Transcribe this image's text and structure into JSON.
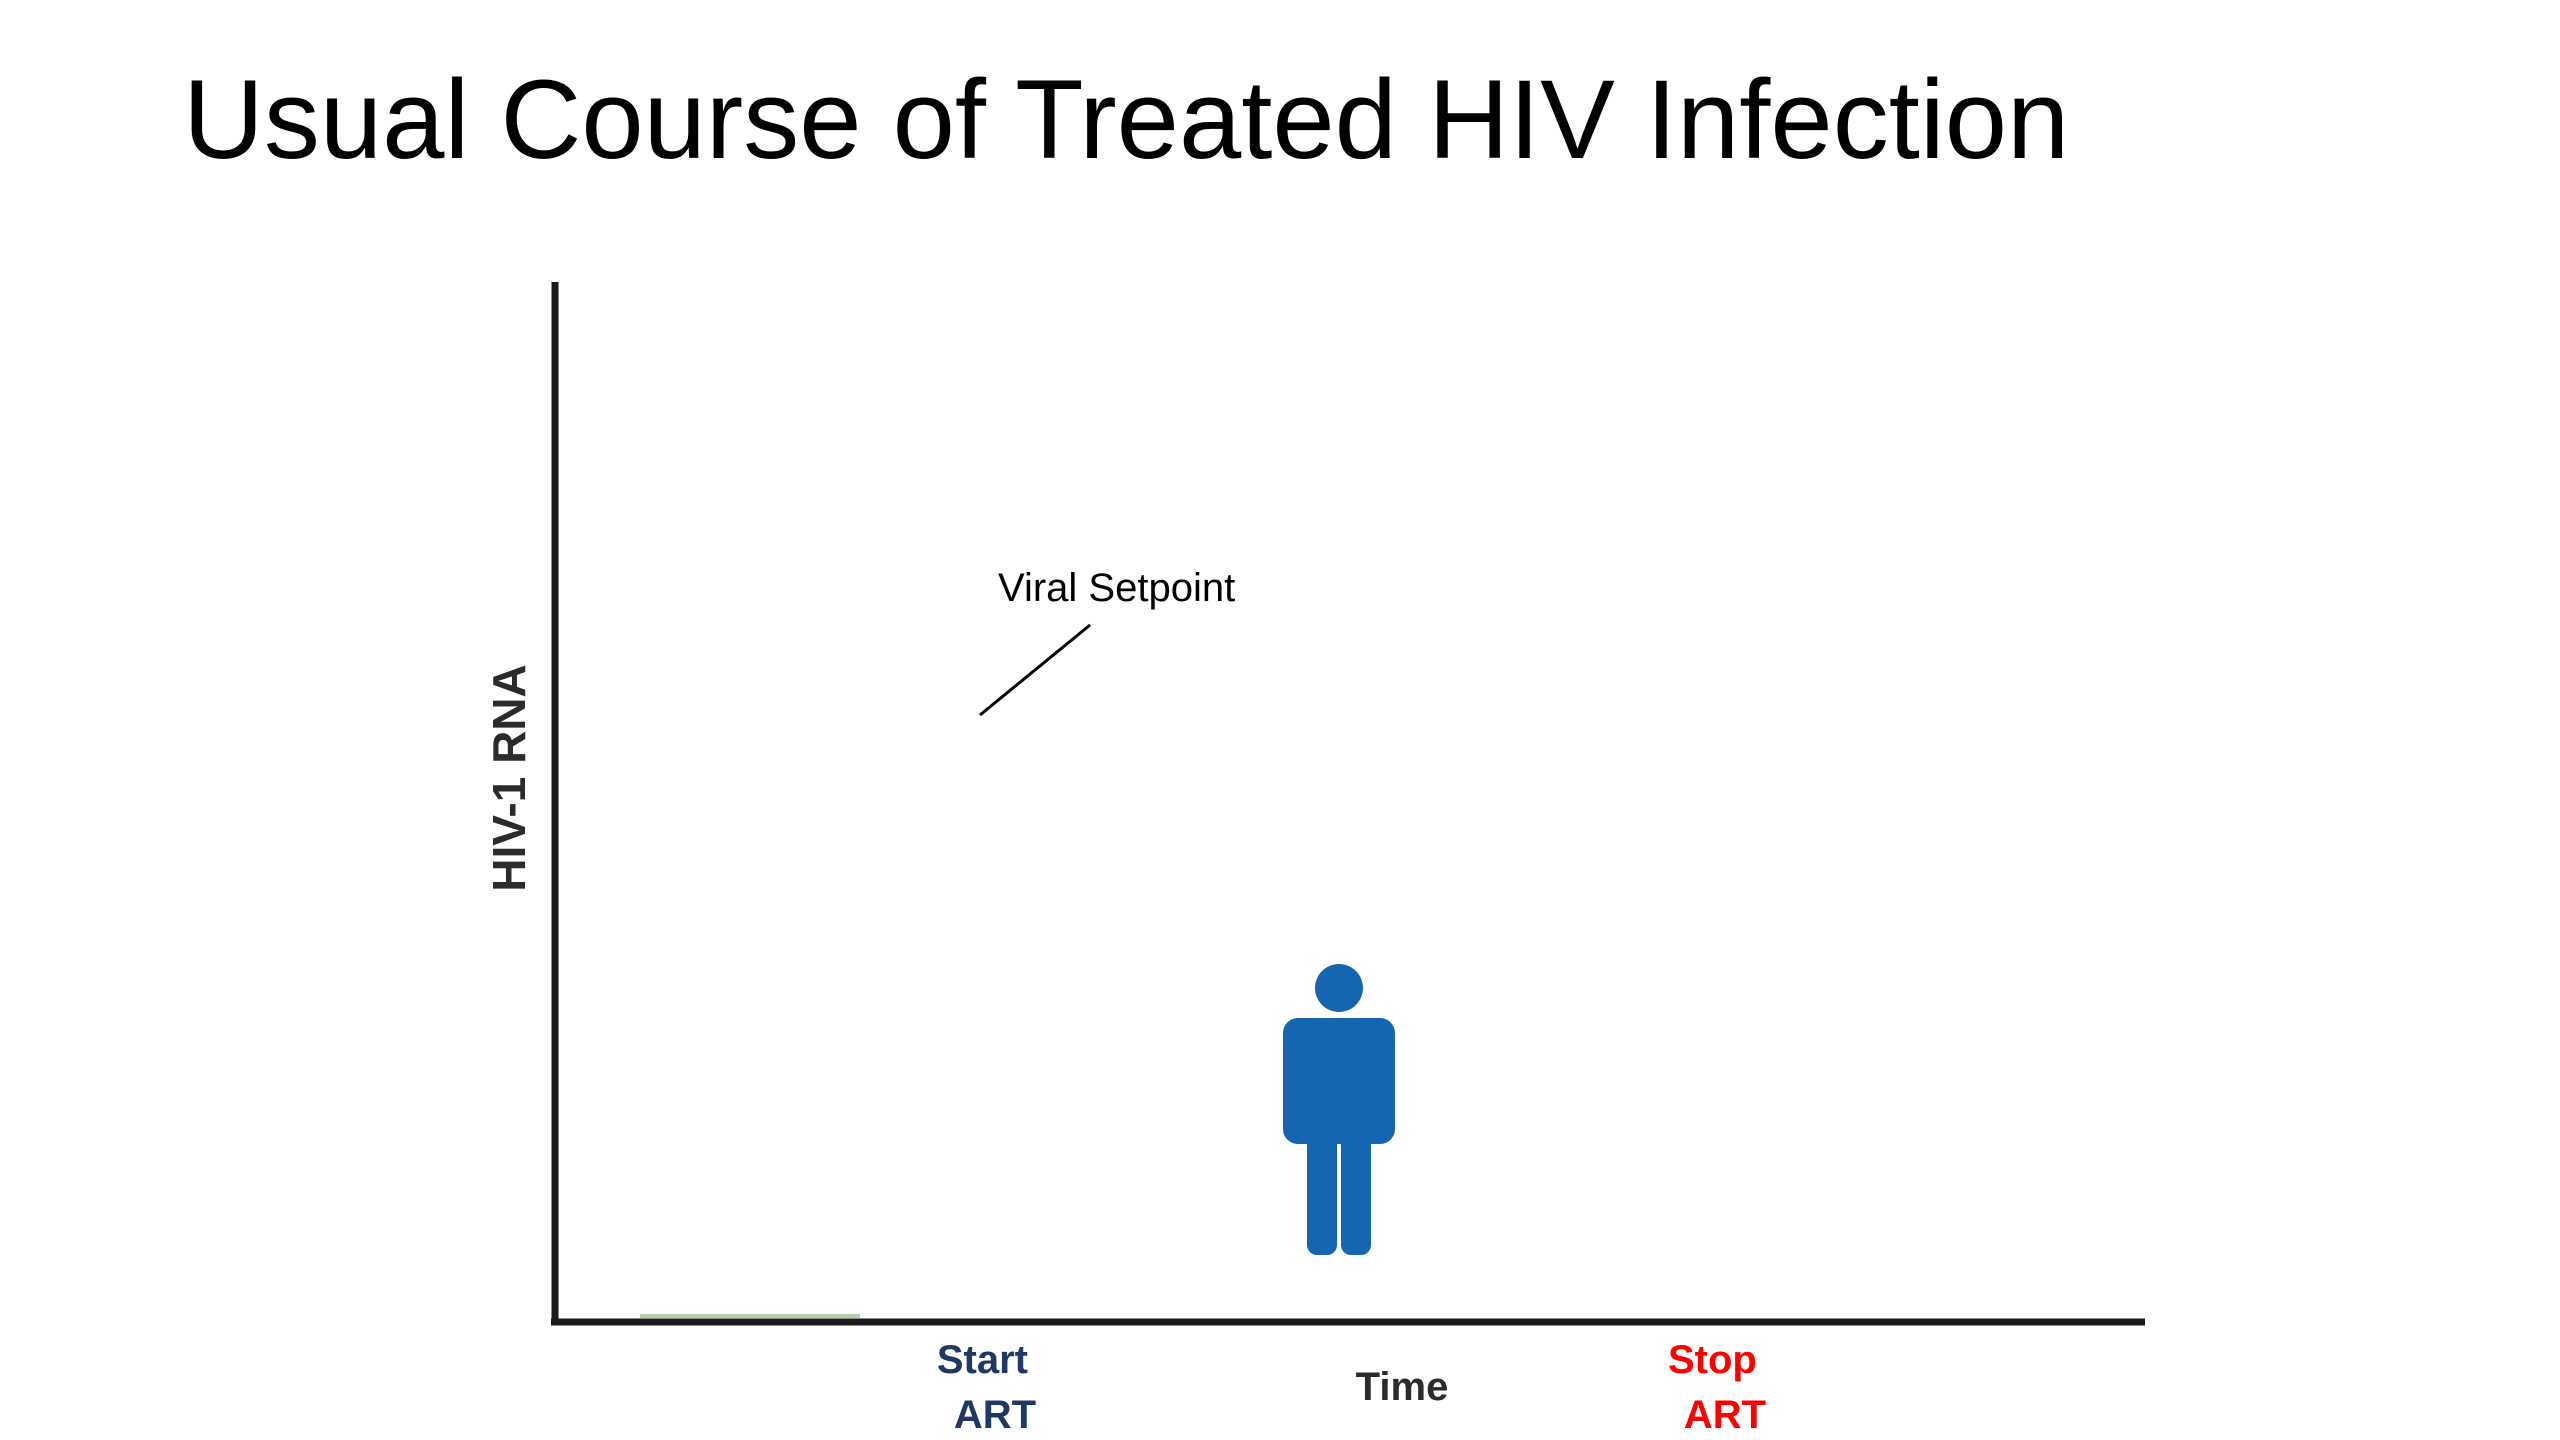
{
  "title": "Usual Course of Treated HIV Infection",
  "diagram": {
    "y_axis_label": "HIV-1 RNA",
    "x_axis_label": "Time",
    "annotation": "Viral Setpoint",
    "start_marker": {
      "line1": "Start",
      "line2": "ART",
      "color": "#1F3864"
    },
    "stop_marker": {
      "line1": "Stop",
      "line2": "ART",
      "color": "#FF0000"
    },
    "person_icon_color": "#1565B0",
    "axis_color": "#1a1a1a"
  }
}
